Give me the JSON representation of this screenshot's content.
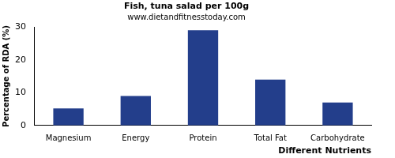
{
  "chart_data": {
    "type": "bar",
    "title": "Fish, tuna salad per 100g",
    "subtitle": "www.dietandfitnesstoday.com",
    "x_label": "Different Nutrients",
    "y_label": "Percentage of RDA (%)",
    "categories": [
      "Magnesium",
      "Energy",
      "Protein",
      "Total Fat",
      "Carbohydrate"
    ],
    "values": [
      5.2,
      9,
      29,
      14,
      7
    ],
    "color": "#233e8b",
    "ylim": [
      0,
      30
    ],
    "yticks": [
      0,
      10,
      20,
      30
    ],
    "grid": false
  }
}
